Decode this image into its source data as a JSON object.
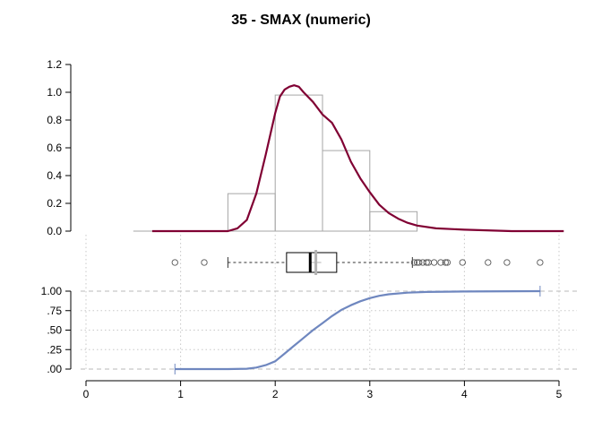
{
  "chart_data": {
    "title": "35 - SMAX (numeric)",
    "colors": {
      "density": "#800033",
      "histogram": "#a6a6a6",
      "ecdf": "#6f87bf",
      "grid": "#c8c8c8",
      "axis": "#000000"
    },
    "x_axis": {
      "range": [
        0,
        5
      ],
      "ticks": [
        0,
        1,
        2,
        3,
        4,
        5
      ],
      "tick_labels": [
        "0",
        "1",
        "2",
        "3",
        "4",
        "5"
      ]
    },
    "panels": [
      {
        "type": "bar",
        "role": "histogram-with-density",
        "ylim": [
          0,
          1.2
        ],
        "y_ticks": [
          0.0,
          0.2,
          0.4,
          0.6,
          0.8,
          1.0,
          1.2
        ],
        "y_tick_labels": [
          "0.0",
          "0.2",
          "0.4",
          "0.6",
          "0.8",
          "1.0",
          "1.2"
        ],
        "bins": [
          {
            "x0": 0.5,
            "x1": 1.0,
            "value": 0.0
          },
          {
            "x0": 1.0,
            "x1": 1.5,
            "value": 0.0
          },
          {
            "x0": 1.5,
            "x1": 2.0,
            "value": 0.27
          },
          {
            "x0": 2.0,
            "x1": 2.5,
            "value": 0.98
          },
          {
            "x0": 2.5,
            "x1": 3.0,
            "value": 0.58
          },
          {
            "x0": 3.0,
            "x1": 3.5,
            "value": 0.14
          }
        ],
        "density": {
          "x": [
            0.7,
            1.0,
            1.2,
            1.4,
            1.5,
            1.6,
            1.7,
            1.8,
            1.9,
            2.0,
            2.05,
            2.1,
            2.15,
            2.2,
            2.25,
            2.3,
            2.4,
            2.5,
            2.6,
            2.7,
            2.8,
            2.9,
            3.0,
            3.1,
            3.2,
            3.3,
            3.4,
            3.5,
            3.7,
            4.0,
            4.5,
            5.05
          ],
          "y": [
            0.0,
            0.0,
            0.0,
            0.0,
            0.0,
            0.02,
            0.08,
            0.27,
            0.55,
            0.85,
            0.97,
            1.02,
            1.04,
            1.05,
            1.04,
            1.0,
            0.93,
            0.84,
            0.78,
            0.66,
            0.5,
            0.38,
            0.28,
            0.19,
            0.13,
            0.09,
            0.06,
            0.04,
            0.02,
            0.01,
            0.0,
            0.0
          ]
        }
      },
      {
        "type": "boxplot",
        "role": "boxplot",
        "q1": 2.12,
        "median": 2.37,
        "q3": 2.65,
        "mean": 2.43,
        "whisker_low": 1.5,
        "whisker_high": 3.45,
        "outliers": [
          0.94,
          1.25,
          3.47,
          3.5,
          3.52,
          3.56,
          3.6,
          3.62,
          3.68,
          3.75,
          3.8,
          3.82,
          3.98,
          4.25,
          4.45,
          4.8
        ]
      },
      {
        "type": "line",
        "role": "ecdf",
        "ylim": [
          0,
          1
        ],
        "y_ticks": [
          0.0,
          0.25,
          0.5,
          0.75,
          1.0
        ],
        "y_tick_labels": [
          ".00",
          ".25",
          ".50",
          ".75",
          "1.00"
        ],
        "x": [
          0.94,
          1.5,
          1.7,
          1.8,
          1.9,
          2.0,
          2.1,
          2.2,
          2.3,
          2.4,
          2.5,
          2.6,
          2.7,
          2.8,
          2.9,
          3.0,
          3.1,
          3.2,
          3.4,
          3.6,
          4.0,
          4.8
        ],
        "y": [
          0.0,
          0.0,
          0.005,
          0.02,
          0.05,
          0.1,
          0.2,
          0.3,
          0.4,
          0.5,
          0.59,
          0.68,
          0.76,
          0.82,
          0.87,
          0.91,
          0.94,
          0.96,
          0.98,
          0.99,
          0.995,
          1.0
        ]
      }
    ]
  }
}
